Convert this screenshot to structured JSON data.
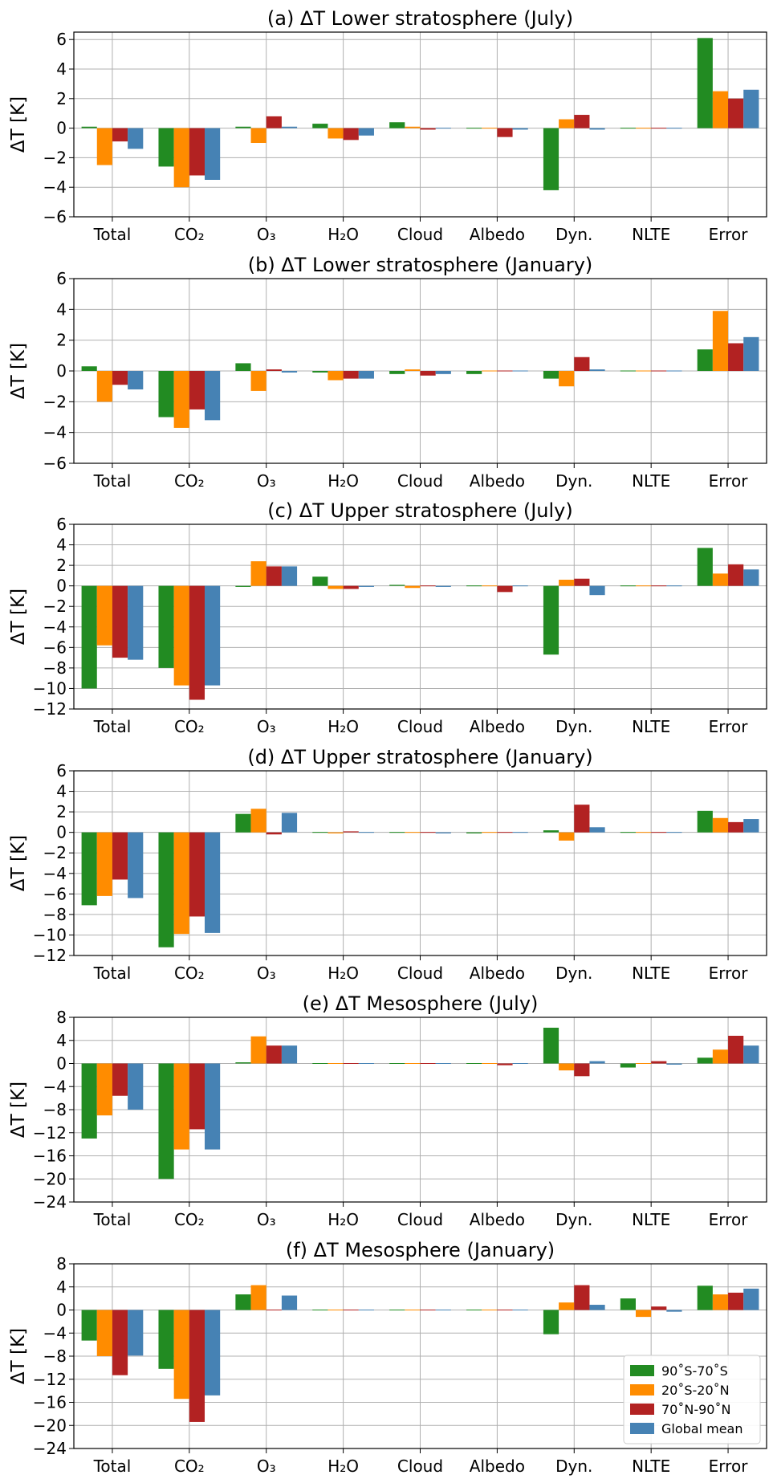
{
  "colors": {
    "series": [
      "#228b22",
      "#ff8c00",
      "#b22222",
      "#4682b4"
    ],
    "grid": "#b0b0b0",
    "frame": "#000000"
  },
  "legend": {
    "placement": "lower-right of panel (f)",
    "entries": [
      "90˚S-70˚S",
      "20˚S-20˚N",
      "70˚N-90˚N",
      "Global mean"
    ]
  },
  "chart_data": [
    {
      "type": "bar",
      "title": "(a) ΔT Lower stratosphere (July)",
      "ylabel": "ΔT [K]",
      "categories": [
        "Total",
        "CO₂",
        "O₃",
        "H₂O",
        "Cloud",
        "Albedo",
        "Dyn.",
        "NLTE",
        "Error"
      ],
      "ylim": [
        -6,
        6.5
      ],
      "yticks": [
        -6,
        -4,
        -2,
        0,
        2,
        4,
        6
      ],
      "ytick_labels": [
        "−6",
        "−4",
        "−2",
        "0",
        "2",
        "4",
        "6"
      ],
      "grid": true,
      "series": [
        {
          "name": "90˚S-70˚S",
          "values": [
            0.1,
            -2.6,
            0.1,
            0.3,
            0.4,
            0.0,
            -4.2,
            0.0,
            6.1
          ]
        },
        {
          "name": "20˚S-20˚N",
          "values": [
            -2.5,
            -4.0,
            -1.0,
            -0.7,
            0.1,
            0.0,
            0.6,
            0.0,
            2.5
          ]
        },
        {
          "name": "70˚N-90˚N",
          "values": [
            -0.9,
            -3.2,
            0.8,
            -0.8,
            -0.1,
            -0.6,
            0.9,
            0.0,
            2.0
          ]
        },
        {
          "name": "Global mean",
          "values": [
            -1.4,
            -3.5,
            0.1,
            -0.5,
            0.0,
            -0.1,
            -0.1,
            0.0,
            2.6
          ]
        }
      ]
    },
    {
      "type": "bar",
      "title": "(b) ΔT Lower stratosphere (January)",
      "ylabel": "ΔT [K]",
      "categories": [
        "Total",
        "CO₂",
        "O₃",
        "H₂O",
        "Cloud",
        "Albedo",
        "Dyn.",
        "NLTE",
        "Error"
      ],
      "ylim": [
        -6,
        6
      ],
      "yticks": [
        -6,
        -4,
        -2,
        0,
        2,
        4,
        6
      ],
      "ytick_labels": [
        "−6",
        "−4",
        "−2",
        "0",
        "2",
        "4",
        "6"
      ],
      "grid": true,
      "series": [
        {
          "name": "90˚S-70˚S",
          "values": [
            0.3,
            -3.0,
            0.5,
            -0.1,
            -0.2,
            -0.2,
            -0.5,
            0.0,
            1.4
          ]
        },
        {
          "name": "20˚S-20˚N",
          "values": [
            -2.0,
            -3.7,
            -1.3,
            -0.6,
            0.1,
            0.0,
            -1.0,
            0.0,
            3.9
          ]
        },
        {
          "name": "70˚N-90˚N",
          "values": [
            -0.9,
            -2.5,
            0.1,
            -0.5,
            -0.3,
            0.0,
            0.9,
            0.0,
            1.8
          ]
        },
        {
          "name": "Global mean",
          "values": [
            -1.2,
            -3.2,
            -0.1,
            -0.5,
            -0.2,
            0.0,
            0.1,
            0.0,
            2.2
          ]
        }
      ]
    },
    {
      "type": "bar",
      "title": "(c) ΔT Upper stratosphere (July)",
      "ylabel": "ΔT [K]",
      "categories": [
        "Total",
        "CO₂",
        "O₃",
        "H₂O",
        "Cloud",
        "Albedo",
        "Dyn.",
        "NLTE",
        "Error"
      ],
      "ylim": [
        -12,
        6
      ],
      "yticks": [
        -12,
        -10,
        -8,
        -6,
        -4,
        -2,
        0,
        2,
        4,
        6
      ],
      "ytick_labels": [
        "−12",
        "−10",
        "−8",
        "−6",
        "−4",
        "−2",
        "0",
        "2",
        "4",
        "6"
      ],
      "grid": true,
      "series": [
        {
          "name": "90˚S-70˚S",
          "values": [
            -10.0,
            -8.0,
            -0.1,
            0.9,
            0.1,
            0.0,
            -6.7,
            0.0,
            3.7
          ]
        },
        {
          "name": "20˚S-20˚N",
          "values": [
            -5.8,
            -9.7,
            2.4,
            -0.3,
            -0.2,
            0.0,
            0.6,
            0.0,
            1.2
          ]
        },
        {
          "name": "70˚N-90˚N",
          "values": [
            -7.0,
            -11.1,
            1.9,
            -0.3,
            0.0,
            -0.6,
            0.7,
            0.0,
            2.1
          ]
        },
        {
          "name": "Global mean",
          "values": [
            -7.2,
            -9.7,
            1.9,
            -0.1,
            -0.1,
            0.0,
            -0.9,
            0.0,
            1.6
          ]
        }
      ]
    },
    {
      "type": "bar",
      "title": "(d) ΔT Upper stratosphere (January)",
      "ylabel": "ΔT [K]",
      "categories": [
        "Total",
        "CO₂",
        "O₃",
        "H₂O",
        "Cloud",
        "Albedo",
        "Dyn.",
        "NLTE",
        "Error"
      ],
      "ylim": [
        -12,
        6
      ],
      "yticks": [
        -12,
        -10,
        -8,
        -6,
        -4,
        -2,
        0,
        2,
        4,
        6
      ],
      "ytick_labels": [
        "−12",
        "−10",
        "−8",
        "−6",
        "−4",
        "−2",
        "0",
        "2",
        "4",
        "6"
      ],
      "grid": true,
      "series": [
        {
          "name": "90˚S-70˚S",
          "values": [
            -7.1,
            -11.2,
            1.8,
            0.0,
            0.0,
            -0.1,
            0.2,
            0.0,
            2.1
          ]
        },
        {
          "name": "20˚S-20˚N",
          "values": [
            -6.2,
            -9.9,
            2.3,
            -0.1,
            0.0,
            0.0,
            -0.8,
            0.0,
            1.4
          ]
        },
        {
          "name": "70˚N-90˚N",
          "values": [
            -4.6,
            -8.2,
            -0.2,
            0.1,
            0.0,
            0.0,
            2.7,
            0.0,
            1.0
          ]
        },
        {
          "name": "Global mean",
          "values": [
            -6.4,
            -9.8,
            1.9,
            0.0,
            -0.1,
            0.0,
            0.5,
            0.0,
            1.3
          ]
        }
      ]
    },
    {
      "type": "bar",
      "title": "(e) ΔT Mesosphere (July)",
      "ylabel": "ΔT [K]",
      "categories": [
        "Total",
        "CO₂",
        "O₃",
        "H₂O",
        "Cloud",
        "Albedo",
        "Dyn.",
        "NLTE",
        "Error"
      ],
      "ylim": [
        -24,
        8
      ],
      "yticks": [
        -24,
        -20,
        -16,
        -12,
        -8,
        -4,
        0,
        4,
        8
      ],
      "ytick_labels": [
        "−24",
        "−20",
        "−16",
        "−12",
        "−8",
        "−4",
        "0",
        "4",
        "8"
      ],
      "grid": true,
      "series": [
        {
          "name": "90˚S-70˚S",
          "values": [
            -13.0,
            -20.0,
            0.2,
            -0.1,
            -0.1,
            -0.1,
            6.2,
            -0.7,
            1.0
          ]
        },
        {
          "name": "20˚S-20˚N",
          "values": [
            -9.0,
            -14.9,
            4.7,
            -0.1,
            -0.1,
            -0.1,
            -1.2,
            0.0,
            2.4
          ]
        },
        {
          "name": "70˚N-90˚N",
          "values": [
            -5.6,
            -11.4,
            3.1,
            -0.1,
            -0.1,
            -0.3,
            -2.2,
            0.4,
            4.8
          ]
        },
        {
          "name": "Global mean",
          "values": [
            -8.0,
            -14.9,
            3.1,
            -0.1,
            -0.1,
            -0.1,
            0.4,
            -0.2,
            3.1
          ]
        }
      ]
    },
    {
      "type": "bar",
      "title": "(f) ΔT Mesosphere (January)",
      "ylabel": "ΔT [K]",
      "categories": [
        "Total",
        "CO₂",
        "O₃",
        "H₂O",
        "Cloud",
        "Albedo",
        "Dyn.",
        "NLTE",
        "Error"
      ],
      "ylim": [
        -24,
        8
      ],
      "yticks": [
        -24,
        -20,
        -16,
        -12,
        -8,
        -4,
        0,
        4,
        8
      ],
      "ytick_labels": [
        "−24",
        "−20",
        "−16",
        "−12",
        "−8",
        "−4",
        "0",
        "4",
        "8"
      ],
      "grid": true,
      "series": [
        {
          "name": "90˚S-70˚S",
          "values": [
            -5.3,
            -10.2,
            2.7,
            -0.1,
            -0.1,
            -0.1,
            -4.2,
            2.0,
            4.2
          ]
        },
        {
          "name": "20˚S-20˚N",
          "values": [
            -8.0,
            -15.4,
            4.3,
            -0.1,
            -0.1,
            -0.1,
            1.3,
            -1.2,
            2.7
          ]
        },
        {
          "name": "70˚N-90˚N",
          "values": [
            -11.3,
            -19.4,
            0.1,
            -0.1,
            -0.1,
            0.1,
            4.3,
            0.6,
            3.0
          ]
        },
        {
          "name": "Global mean",
          "values": [
            -7.9,
            -14.8,
            2.5,
            -0.1,
            -0.1,
            -0.1,
            0.9,
            -0.3,
            3.7
          ]
        }
      ]
    }
  ]
}
